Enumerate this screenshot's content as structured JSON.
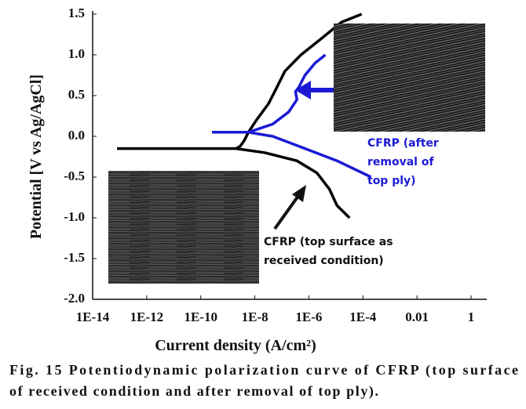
{
  "chart_data": {
    "type": "line",
    "xlabel": "Current density (A/cm²)",
    "ylabel": "Potential [V vs Ag/AgCl]",
    "xscale": "log",
    "xlim": [
      1e-14,
      1
    ],
    "xticks": [
      {
        "value": 1e-14,
        "label": "1E-14"
      },
      {
        "value": 1e-12,
        "label": "1E-12"
      },
      {
        "value": 1e-10,
        "label": "1E-10"
      },
      {
        "value": 1e-08,
        "label": "1E-8"
      },
      {
        "value": 1e-06,
        "label": "1E-6"
      },
      {
        "value": 0.0001,
        "label": "1E-4"
      },
      0.01,
      1
    ],
    "ylim": [
      -2.0,
      1.5
    ],
    "yticks": [
      {
        "value": -2.0,
        "label": "-2.0"
      },
      -1.5,
      {
        "value": -1.0,
        "label": "-1.0"
      },
      -0.5,
      {
        "value": 0.0,
        "label": "0.0"
      },
      0.5,
      {
        "value": 1.0,
        "label": "1.0"
      },
      1.5
    ],
    "series": [
      {
        "name": "CFRP (top surface as received condition)",
        "color": "#000000",
        "x": [
          8e-14,
          2e-09,
          2.9e-09,
          4.1e-09,
          5.8e-09,
          1.15e-08,
          3.2e-08,
          6.5e-08,
          1.3e-07,
          5.1e-07,
          2.9e-06,
          1.6e-05,
          9e-05,
          null,
          2e-09,
          2.3e-08,
          3.6e-07,
          2e-06,
          5.8e-06,
          1.1e-05,
          3.2e-05
        ],
        "values": [
          -0.15,
          -0.15,
          -0.12,
          -0.05,
          0.05,
          0.2,
          0.4,
          0.6,
          0.8,
          1.0,
          1.2,
          1.4,
          1.5,
          null,
          -0.15,
          -0.2,
          -0.3,
          -0.45,
          -0.65,
          -0.85,
          -1.0
        ]
      },
      {
        "name": "CFRP (after removal of top ply)",
        "color": "#1a1ad6",
        "x": [
          0.0002,
          1.1e-05,
          7.2e-07,
          4.6e-08,
          5.8e-09,
          2.6e-10,
          null,
          5.8e-09,
          4.6e-08,
          1.8e-07,
          3.6e-07,
          3.2e-07,
          4.2e-07,
          7.2e-07,
          1.7e-06,
          4.1e-06
        ],
        "values": [
          -0.5,
          -0.3,
          -0.15,
          0.0,
          0.05,
          0.05,
          null,
          0.05,
          0.15,
          0.3,
          0.45,
          0.55,
          0.6,
          0.75,
          0.9,
          1.0
        ]
      }
    ],
    "annotations": [
      {
        "lines": [
          "CFRP (after",
          "removal of",
          "top ply)"
        ],
        "color": "#1a1ad6"
      },
      {
        "lines": [
          "CFRP (top surface as",
          "received condition)"
        ],
        "color": "#111111"
      }
    ]
  },
  "caption": [
    "Fig. 15 Potentiodynamic polarization curve of CFRP (top surface",
    "of received condition and after removal of top ply)."
  ]
}
